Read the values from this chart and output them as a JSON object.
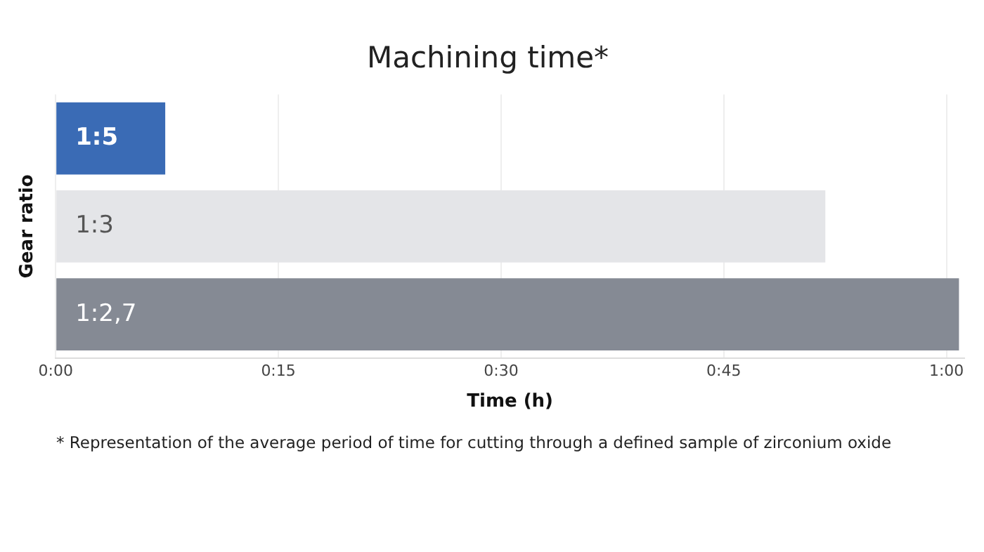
{
  "chart_data": {
    "type": "bar",
    "orientation": "horizontal",
    "title": "Machining time*",
    "xlabel": "Time (h)",
    "ylabel": "Gear ratio",
    "categories": [
      "1:5",
      "1:3",
      "1:2,7"
    ],
    "values": [
      0.123,
      0.864,
      1.014
    ],
    "colors": [
      "#3a6bb5",
      "#e4e5e8",
      "#858a94"
    ],
    "xlim": [
      0,
      1.02
    ],
    "xticks": [
      {
        "value": 0,
        "label": "0:00"
      },
      {
        "value": 0.25,
        "label": "0:15"
      },
      {
        "value": 0.5,
        "label": "0:30"
      },
      {
        "value": 0.75,
        "label": "0:45"
      },
      {
        "value": 1,
        "label": "1:00"
      }
    ],
    "grid": "x",
    "legend": false,
    "annotations": [
      "* Representation of the average period of time for cutting through a defined sample of zirconium oxide"
    ]
  }
}
